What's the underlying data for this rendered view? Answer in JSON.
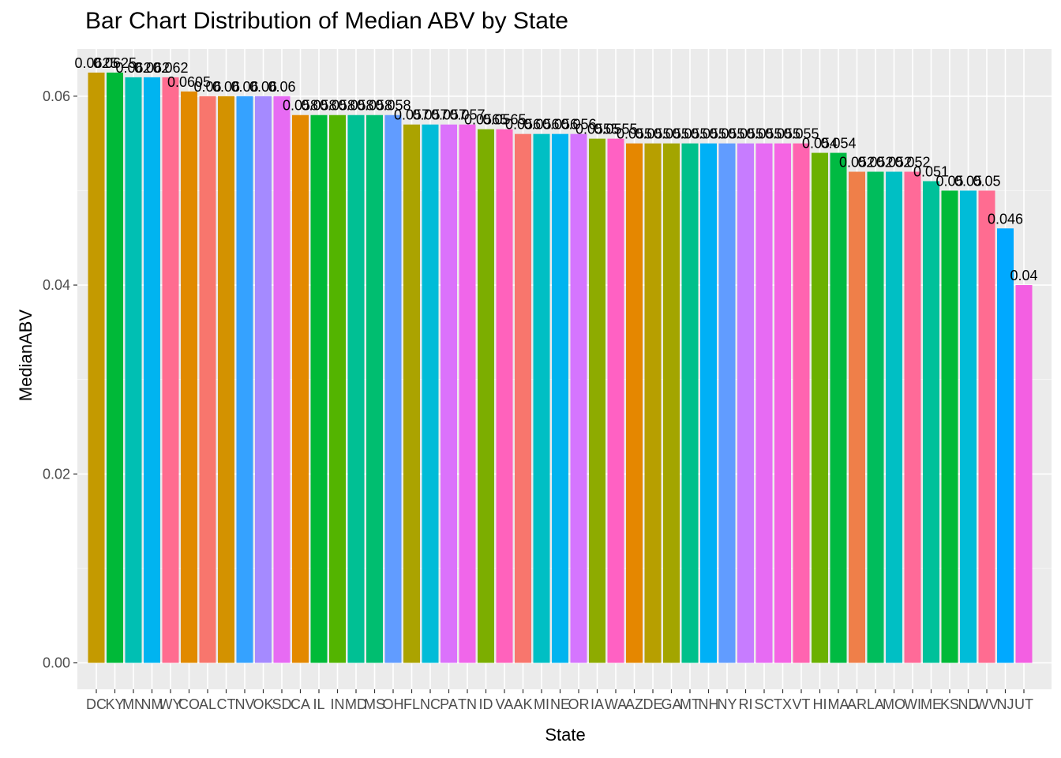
{
  "chart_data": {
    "type": "bar",
    "title": "Bar Chart Distribution of Median ABV by State",
    "xlabel": "State",
    "ylabel": "MedianABV",
    "ylim": [
      -0.0028,
      0.065
    ],
    "yticks": [
      0.0,
      0.02,
      0.04,
      0.06
    ],
    "ytick_labels": [
      "0.00",
      "0.02",
      "0.04",
      "0.06"
    ],
    "grid": true,
    "legend": "none",
    "categories": [
      "DC",
      "KY",
      "MN",
      "NM",
      "WY",
      "CO",
      "AL",
      "CT",
      "NV",
      "OK",
      "SD",
      "CA",
      "IL",
      "IN",
      "MD",
      "MS",
      "OH",
      "FL",
      "NC",
      "PA",
      "TN",
      "ID",
      "VA",
      "AK",
      "MI",
      "NE",
      "OR",
      "IA",
      "WA",
      "AZ",
      "DE",
      "GA",
      "MT",
      "NH",
      "NY",
      "RI",
      "SC",
      "TX",
      "VT",
      "HI",
      "MA",
      "AR",
      "LA",
      "MO",
      "WI",
      "ME",
      "KS",
      "ND",
      "WV",
      "NJ",
      "UT"
    ],
    "values": [
      0.0625,
      0.0625,
      0.062,
      0.062,
      0.062,
      0.0605,
      0.06,
      0.06,
      0.06,
      0.06,
      0.06,
      0.058,
      0.058,
      0.058,
      0.058,
      0.058,
      0.058,
      0.057,
      0.057,
      0.057,
      0.057,
      0.0565,
      0.0565,
      0.056,
      0.056,
      0.056,
      0.056,
      0.0555,
      0.0555,
      0.055,
      0.055,
      0.055,
      0.055,
      0.055,
      0.055,
      0.055,
      0.055,
      0.055,
      0.055,
      0.054,
      0.054,
      0.052,
      0.052,
      0.052,
      0.052,
      0.051,
      0.05,
      0.05,
      0.05,
      0.046,
      0.04
    ],
    "value_labels": [
      "0.0625",
      "0.0625",
      "0.062",
      "0.062",
      "0.062",
      "0.0605",
      "0.06",
      "0.06",
      "0.06",
      "0.06",
      "0.06",
      "0.058",
      "0.058",
      "0.058",
      "0.058",
      "0.058",
      "0.058",
      "0.057",
      "0.057",
      "0.057",
      "0.057",
      "0.0565",
      "0.0565",
      "0.056",
      "0.056",
      "0.056",
      "0.056",
      "0.0555",
      "0.0555",
      "0.055",
      "0.055",
      "0.055",
      "0.055",
      "0.055",
      "0.055",
      "0.055",
      "0.055",
      "0.055",
      "0.055",
      "0.054",
      "0.054",
      "0.052",
      "0.052",
      "0.052",
      "0.052",
      "0.051",
      "0.05",
      "0.05",
      "0.05",
      "0.046",
      "0.04"
    ],
    "colors": [
      "#C49A00",
      "#00B938",
      "#00BFB3",
      "#00B4F0",
      "#FF6C90",
      "#E18A00",
      "#F8766D",
      "#D39200",
      "#35A2FF",
      "#A58AFF",
      "#E76BF3",
      "#E38900",
      "#00BA38",
      "#53B400",
      "#00C094",
      "#00BE70",
      "#619CFF",
      "#ABA300",
      "#00BCD8",
      "#DB72FB",
      "#F066EA",
      "#7CAE00",
      "#FF62BC",
      "#F8766D",
      "#00BFC4",
      "#00B4EF",
      "#D575FE",
      "#8EAB00",
      "#FF61C3",
      "#E58700",
      "#B79F00",
      "#A3A500",
      "#00C08B",
      "#00B0F6",
      "#619CFF",
      "#C77CFF",
      "#E76BF3",
      "#F564E3",
      "#FF64B0",
      "#6BB100",
      "#00BA42",
      "#EF7F49",
      "#00BD5C",
      "#00BFC4",
      "#FF6A98",
      "#00C19A",
      "#00BA38",
      "#00BCD8",
      "#FF6C91",
      "#00A9FF",
      "#F35FE2"
    ]
  }
}
